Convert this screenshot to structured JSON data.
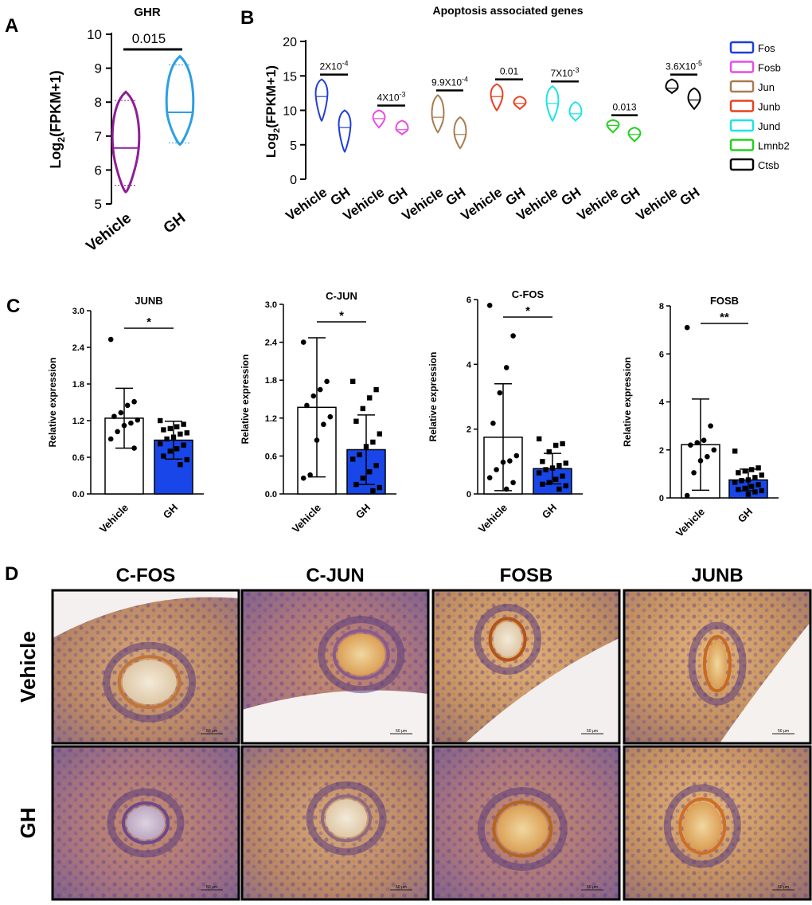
{
  "panels": {
    "a": "A",
    "b": "B",
    "c": "C",
    "d": "D"
  },
  "chart_data": [
    {
      "id": "A",
      "type": "violin",
      "title": "GHR",
      "ylabel_parts": [
        "Log",
        "2",
        "(FPKM+1)"
      ],
      "categories": [
        "Vehicle",
        "GH"
      ],
      "yticks": [
        5,
        6,
        7,
        8,
        9,
        10
      ],
      "ylim": [
        5,
        10
      ],
      "colors": [
        "#8e1f96",
        "#2d9fe3"
      ],
      "series": [
        {
          "category": "Vehicle",
          "min": 5.35,
          "q1": 5.55,
          "median": 6.65,
          "q3": 8.05,
          "max": 8.3
        },
        {
          "category": "GH",
          "min": 6.75,
          "q1": 6.8,
          "median": 7.7,
          "q3": 9.1,
          "max": 9.35
        }
      ],
      "annotation": {
        "text": "0.015"
      }
    },
    {
      "id": "B",
      "type": "violin",
      "title": "Apoptosis associated genes",
      "ylabel_parts": [
        "Log",
        "2",
        "(FPKM+1)"
      ],
      "yticks": [
        0,
        5,
        10,
        15,
        20
      ],
      "ylim": [
        0,
        20
      ],
      "group_labels": [
        "Vehicle",
        "GH"
      ],
      "legend_position": "right",
      "genes": [
        {
          "name": "Fos",
          "color": "#1f3fd6",
          "p": [
            "2X10",
            "-4"
          ],
          "vehicle": {
            "min": 8.5,
            "median": 12,
            "max": 14.5
          },
          "gh": {
            "min": 4,
            "median": 7.5,
            "max": 10
          }
        },
        {
          "name": "Fosb",
          "color": "#e64ee0",
          "p": [
            "4X10",
            "-3"
          ],
          "vehicle": {
            "min": 7.5,
            "median": 8.8,
            "max": 10
          },
          "gh": {
            "min": 6.5,
            "median": 7.2,
            "max": 8.5
          }
        },
        {
          "name": "Jun",
          "color": "#a97c50",
          "p": [
            "9.9X10",
            "-4"
          ],
          "vehicle": {
            "min": 6.8,
            "median": 9,
            "max": 12.2
          },
          "gh": {
            "min": 4.5,
            "median": 6.5,
            "max": 9
          }
        },
        {
          "name": "Junb",
          "color": "#e8411f",
          "p": [
            "0.01",
            ""
          ],
          "vehicle": {
            "min": 10,
            "median": 12,
            "max": 13.8
          },
          "gh": {
            "min": 10.2,
            "median": 11,
            "max": 12
          }
        },
        {
          "name": "Jund",
          "color": "#1fe3e3",
          "p": [
            "7X10",
            "-3"
          ],
          "vehicle": {
            "min": 8.5,
            "median": 11,
            "max": 13.5
          },
          "gh": {
            "min": 8.5,
            "median": 9.5,
            "max": 11.2
          }
        },
        {
          "name": "Lmnb2",
          "color": "#22d11f",
          "p": [
            "0.013",
            ""
          ],
          "vehicle": {
            "min": 6.8,
            "median": 7.8,
            "max": 8.6
          },
          "gh": {
            "min": 5.5,
            "median": 6.5,
            "max": 7.5
          }
        },
        {
          "name": "Ctsb",
          "color": "#000000",
          "p": [
            "3.6X10",
            "-5"
          ],
          "vehicle": {
            "min": 12.5,
            "median": 13.2,
            "max": 14.5
          },
          "gh": {
            "min": 10.2,
            "median": 11.5,
            "max": 13.2
          }
        }
      ]
    },
    {
      "id": "C1",
      "type": "bar",
      "title": "JUNB",
      "ylabel": "Relative expression",
      "categories": [
        "Vehicle",
        "GH"
      ],
      "values": [
        1.24,
        0.88
      ],
      "sd": [
        0.49,
        0.31
      ],
      "yticks": [
        "0.0",
        "0.6",
        "1.2",
        "1.8",
        "2.4",
        "3.0"
      ],
      "ylim": [
        0,
        3.0
      ],
      "significance": "*",
      "points": [
        [
          2.53,
          1.51,
          1.45,
          1.33,
          1.27,
          1.21,
          1.16,
          1.12,
          1.02,
          0.9,
          0.75
        ],
        [
          1.2,
          1.14,
          1.1,
          1.07,
          1.05,
          1.0,
          0.98,
          0.93,
          0.9,
          0.82,
          0.8,
          0.74,
          0.7,
          0.62,
          0.56,
          0.48
        ]
      ]
    },
    {
      "id": "C2",
      "type": "bar",
      "title": "C-JUN",
      "ylabel": "Relative expression",
      "categories": [
        "Vehicle",
        "GH"
      ],
      "values": [
        1.37,
        0.7
      ],
      "sd": [
        1.1,
        0.55
      ],
      "yticks": [
        "0.0",
        "0.6",
        "1.2",
        "1.8",
        "2.4",
        "3.0"
      ],
      "ylim": [
        0,
        3.0
      ],
      "significance": "*",
      "points": [
        [
          2.4,
          1.78,
          1.65,
          1.55,
          1.4,
          1.22,
          1.1,
          0.85,
          0.3,
          0.25
        ],
        [
          1.78,
          1.65,
          1.52,
          1.35,
          1.15,
          0.95,
          0.82,
          0.75,
          0.62,
          0.55,
          0.45,
          0.35,
          0.25,
          0.15,
          0.1,
          0.05
        ]
      ]
    },
    {
      "id": "C3",
      "type": "bar",
      "title": "C-FOS",
      "ylabel": "Relative expression",
      "categories": [
        "Vehicle",
        "GH"
      ],
      "values": [
        1.75,
        0.78
      ],
      "sd": [
        1.65,
        0.47
      ],
      "yticks": [
        "0",
        "2",
        "4",
        "6"
      ],
      "ylim": [
        0,
        6
      ],
      "significance": "*",
      "points": [
        [
          5.82,
          4.88,
          3.9,
          3.12,
          2.18,
          1.18,
          1.02,
          0.98,
          0.75,
          0.5,
          0.35,
          0.15
        ],
        [
          1.7,
          1.55,
          1.5,
          1.3,
          1.0,
          0.95,
          0.88,
          0.8,
          0.75,
          0.65,
          0.55,
          0.45,
          0.35,
          0.3,
          0.25,
          0.15
        ]
      ]
    },
    {
      "id": "C4",
      "type": "bar",
      "title": "FOSB",
      "ylabel": "Relative expression",
      "categories": [
        "Vehicle",
        "GH"
      ],
      "values": [
        2.22,
        0.75
      ],
      "sd": [
        1.9,
        0.45
      ],
      "yticks": [
        "0",
        "2",
        "4",
        "6",
        "8"
      ],
      "ylim": [
        0,
        8
      ],
      "significance": "**",
      "points": [
        [
          7.1,
          3.0,
          2.4,
          2.3,
          2.2,
          2.0,
          1.72,
          1.55,
          1.05,
          0.1
        ],
        [
          1.95,
          1.25,
          1.18,
          1.12,
          1.05,
          0.95,
          0.85,
          0.75,
          0.72,
          0.65,
          0.55,
          0.48,
          0.4,
          0.35,
          0.3,
          0.25,
          0.15
        ]
      ]
    }
  ],
  "panel_d": {
    "columns": [
      "C-FOS",
      "C-JUN",
      "FOSB",
      "JUNB"
    ],
    "rows": [
      "Vehicle",
      "GH"
    ],
    "scale_bar": "50 μm"
  }
}
